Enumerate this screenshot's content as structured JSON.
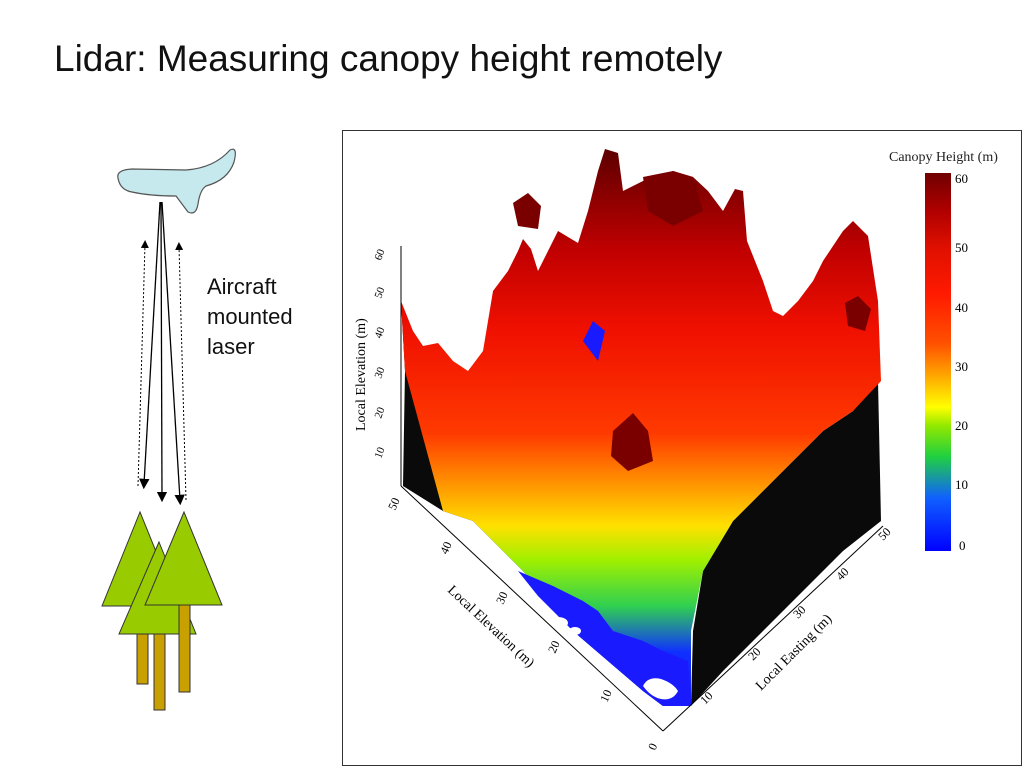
{
  "slide": {
    "title": "Lidar:  Measuring canopy height remotely"
  },
  "laser_caption": [
    "Aircraft",
    "mounted",
    "laser"
  ],
  "colors": {
    "aircraft_fill": "#c6e9ee",
    "tree_foliage": "#99cc00",
    "tree_trunk": "#c8a000",
    "ground_shadow": "#0a0a0a"
  },
  "icons": [
    "aircraft-icon",
    "tree-icon"
  ],
  "chart_data": {
    "type": "surface3d",
    "title": "",
    "colorbar": {
      "label": "Canopy Height (m)",
      "ticks": [
        0,
        10,
        20,
        30,
        40,
        50,
        60
      ],
      "range": [
        0,
        60
      ],
      "colors": [
        "#0000ff",
        "#1060ff",
        "#20d040",
        "#90e800",
        "#ffff00",
        "#ffa000",
        "#ff5000",
        "#ff1a00",
        "#e01000",
        "#b00000",
        "#700000"
      ]
    },
    "axes": {
      "z": {
        "label": "Local Elevation  (m)",
        "ticks": [
          "10",
          "20",
          "30",
          "40",
          "50",
          "60"
        ]
      },
      "left_base": {
        "label": "Local Elevation  (m)",
        "ticks": [
          "0",
          "10",
          "20",
          "30",
          "40",
          "50"
        ]
      },
      "right_base": {
        "label": "Local Easting (m)",
        "ticks": [
          "10",
          "20",
          "30",
          "40",
          "50"
        ]
      }
    }
  }
}
